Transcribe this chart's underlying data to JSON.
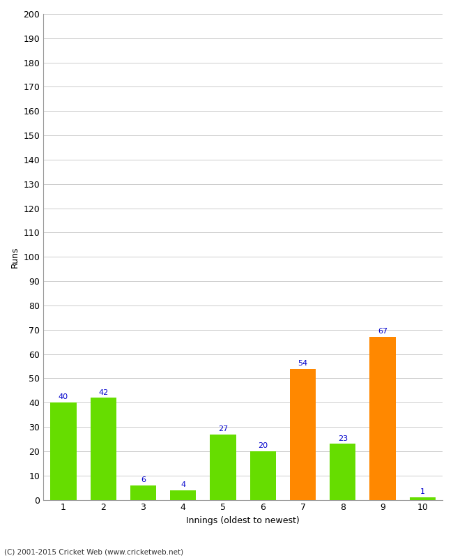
{
  "categories": [
    "1",
    "2",
    "3",
    "4",
    "5",
    "6",
    "7",
    "8",
    "9",
    "10"
  ],
  "values": [
    40,
    42,
    6,
    4,
    27,
    20,
    54,
    23,
    67,
    1
  ],
  "bar_colors": [
    "#66dd00",
    "#66dd00",
    "#66dd00",
    "#66dd00",
    "#66dd00",
    "#66dd00",
    "#ff8800",
    "#66dd00",
    "#ff8800",
    "#66dd00"
  ],
  "ylabel": "Runs",
  "xlabel": "Innings (oldest to newest)",
  "ylim": [
    0,
    200
  ],
  "yticks": [
    0,
    10,
    20,
    30,
    40,
    50,
    60,
    70,
    80,
    90,
    100,
    110,
    120,
    130,
    140,
    150,
    160,
    170,
    180,
    190,
    200
  ],
  "label_color": "#0000cc",
  "background_color": "#ffffff",
  "grid_color": "#cccccc",
  "footer": "(C) 2001-2015 Cricket Web (www.cricketweb.net)"
}
